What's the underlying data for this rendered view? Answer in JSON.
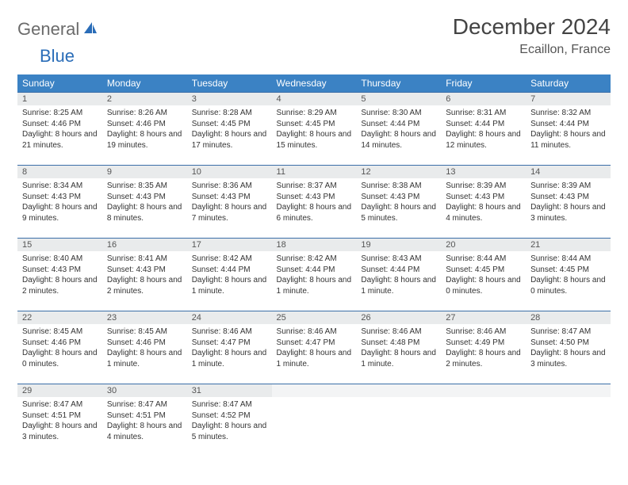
{
  "logo": {
    "word1": "General",
    "word2": "Blue"
  },
  "title": "December 2024",
  "location": "Ecaillon, France",
  "colors": {
    "header_bg": "#3b82c4",
    "header_text": "#ffffff",
    "daynum_bg": "#e9ebec",
    "row_border": "#3b6fa8",
    "logo_gray": "#6b6b6b",
    "logo_blue": "#2a6db8"
  },
  "typography": {
    "title_fontsize": 28,
    "location_fontsize": 16,
    "weekday_fontsize": 12,
    "daynum_fontsize": 11,
    "body_fontsize": 10
  },
  "weekdays": [
    "Sunday",
    "Monday",
    "Tuesday",
    "Wednesday",
    "Thursday",
    "Friday",
    "Saturday"
  ],
  "weeks": [
    [
      {
        "num": "1",
        "sunrise": "Sunrise: 8:25 AM",
        "sunset": "Sunset: 4:46 PM",
        "daylight": "Daylight: 8 hours and 21 minutes."
      },
      {
        "num": "2",
        "sunrise": "Sunrise: 8:26 AM",
        "sunset": "Sunset: 4:46 PM",
        "daylight": "Daylight: 8 hours and 19 minutes."
      },
      {
        "num": "3",
        "sunrise": "Sunrise: 8:28 AM",
        "sunset": "Sunset: 4:45 PM",
        "daylight": "Daylight: 8 hours and 17 minutes."
      },
      {
        "num": "4",
        "sunrise": "Sunrise: 8:29 AM",
        "sunset": "Sunset: 4:45 PM",
        "daylight": "Daylight: 8 hours and 15 minutes."
      },
      {
        "num": "5",
        "sunrise": "Sunrise: 8:30 AM",
        "sunset": "Sunset: 4:44 PM",
        "daylight": "Daylight: 8 hours and 14 minutes."
      },
      {
        "num": "6",
        "sunrise": "Sunrise: 8:31 AM",
        "sunset": "Sunset: 4:44 PM",
        "daylight": "Daylight: 8 hours and 12 minutes."
      },
      {
        "num": "7",
        "sunrise": "Sunrise: 8:32 AM",
        "sunset": "Sunset: 4:44 PM",
        "daylight": "Daylight: 8 hours and 11 minutes."
      }
    ],
    [
      {
        "num": "8",
        "sunrise": "Sunrise: 8:34 AM",
        "sunset": "Sunset: 4:43 PM",
        "daylight": "Daylight: 8 hours and 9 minutes."
      },
      {
        "num": "9",
        "sunrise": "Sunrise: 8:35 AM",
        "sunset": "Sunset: 4:43 PM",
        "daylight": "Daylight: 8 hours and 8 minutes."
      },
      {
        "num": "10",
        "sunrise": "Sunrise: 8:36 AM",
        "sunset": "Sunset: 4:43 PM",
        "daylight": "Daylight: 8 hours and 7 minutes."
      },
      {
        "num": "11",
        "sunrise": "Sunrise: 8:37 AM",
        "sunset": "Sunset: 4:43 PM",
        "daylight": "Daylight: 8 hours and 6 minutes."
      },
      {
        "num": "12",
        "sunrise": "Sunrise: 8:38 AM",
        "sunset": "Sunset: 4:43 PM",
        "daylight": "Daylight: 8 hours and 5 minutes."
      },
      {
        "num": "13",
        "sunrise": "Sunrise: 8:39 AM",
        "sunset": "Sunset: 4:43 PM",
        "daylight": "Daylight: 8 hours and 4 minutes."
      },
      {
        "num": "14",
        "sunrise": "Sunrise: 8:39 AM",
        "sunset": "Sunset: 4:43 PM",
        "daylight": "Daylight: 8 hours and 3 minutes."
      }
    ],
    [
      {
        "num": "15",
        "sunrise": "Sunrise: 8:40 AM",
        "sunset": "Sunset: 4:43 PM",
        "daylight": "Daylight: 8 hours and 2 minutes."
      },
      {
        "num": "16",
        "sunrise": "Sunrise: 8:41 AM",
        "sunset": "Sunset: 4:43 PM",
        "daylight": "Daylight: 8 hours and 2 minutes."
      },
      {
        "num": "17",
        "sunrise": "Sunrise: 8:42 AM",
        "sunset": "Sunset: 4:44 PM",
        "daylight": "Daylight: 8 hours and 1 minute."
      },
      {
        "num": "18",
        "sunrise": "Sunrise: 8:42 AM",
        "sunset": "Sunset: 4:44 PM",
        "daylight": "Daylight: 8 hours and 1 minute."
      },
      {
        "num": "19",
        "sunrise": "Sunrise: 8:43 AM",
        "sunset": "Sunset: 4:44 PM",
        "daylight": "Daylight: 8 hours and 1 minute."
      },
      {
        "num": "20",
        "sunrise": "Sunrise: 8:44 AM",
        "sunset": "Sunset: 4:45 PM",
        "daylight": "Daylight: 8 hours and 0 minutes."
      },
      {
        "num": "21",
        "sunrise": "Sunrise: 8:44 AM",
        "sunset": "Sunset: 4:45 PM",
        "daylight": "Daylight: 8 hours and 0 minutes."
      }
    ],
    [
      {
        "num": "22",
        "sunrise": "Sunrise: 8:45 AM",
        "sunset": "Sunset: 4:46 PM",
        "daylight": "Daylight: 8 hours and 0 minutes."
      },
      {
        "num": "23",
        "sunrise": "Sunrise: 8:45 AM",
        "sunset": "Sunset: 4:46 PM",
        "daylight": "Daylight: 8 hours and 1 minute."
      },
      {
        "num": "24",
        "sunrise": "Sunrise: 8:46 AM",
        "sunset": "Sunset: 4:47 PM",
        "daylight": "Daylight: 8 hours and 1 minute."
      },
      {
        "num": "25",
        "sunrise": "Sunrise: 8:46 AM",
        "sunset": "Sunset: 4:47 PM",
        "daylight": "Daylight: 8 hours and 1 minute."
      },
      {
        "num": "26",
        "sunrise": "Sunrise: 8:46 AM",
        "sunset": "Sunset: 4:48 PM",
        "daylight": "Daylight: 8 hours and 1 minute."
      },
      {
        "num": "27",
        "sunrise": "Sunrise: 8:46 AM",
        "sunset": "Sunset: 4:49 PM",
        "daylight": "Daylight: 8 hours and 2 minutes."
      },
      {
        "num": "28",
        "sunrise": "Sunrise: 8:47 AM",
        "sunset": "Sunset: 4:50 PM",
        "daylight": "Daylight: 8 hours and 3 minutes."
      }
    ],
    [
      {
        "num": "29",
        "sunrise": "Sunrise: 8:47 AM",
        "sunset": "Sunset: 4:51 PM",
        "daylight": "Daylight: 8 hours and 3 minutes."
      },
      {
        "num": "30",
        "sunrise": "Sunrise: 8:47 AM",
        "sunset": "Sunset: 4:51 PM",
        "daylight": "Daylight: 8 hours and 4 minutes."
      },
      {
        "num": "31",
        "sunrise": "Sunrise: 8:47 AM",
        "sunset": "Sunset: 4:52 PM",
        "daylight": "Daylight: 8 hours and 5 minutes."
      },
      null,
      null,
      null,
      null
    ]
  ]
}
